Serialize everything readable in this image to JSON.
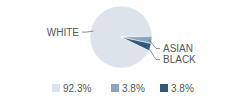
{
  "chart_data": {
    "type": "pie",
    "categories": [
      "WHITE",
      "ASIAN",
      "BLACK"
    ],
    "values": [
      92.3,
      3.8,
      3.8
    ],
    "value_labels": [
      "92.3%",
      "3.8%",
      "3.8%"
    ],
    "colors": [
      "#dce3ea",
      "#8ea6bb",
      "#2e5b79"
    ],
    "legend": "bottom"
  }
}
